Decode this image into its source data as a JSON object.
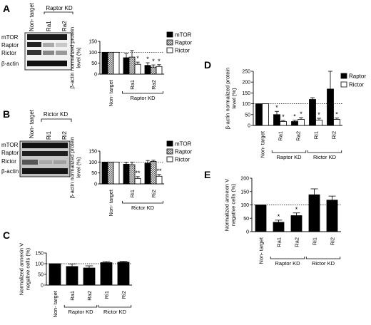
{
  "panels": {
    "A": {
      "letter": "A",
      "group_label": "Raptor KD",
      "lane_labels": [
        "Non- target",
        "Ra1",
        "Ra2"
      ],
      "blot_rows": [
        "mTOR",
        "Raptor",
        "Rictor",
        "β-actin"
      ]
    },
    "B": {
      "letter": "B",
      "group_label": "Rictor KD",
      "lane_labels": [
        "Non- target",
        "Ri1",
        "Ri2"
      ],
      "blot_rows": [
        "mTOR",
        "Raptor",
        "Rictor",
        "β-actin"
      ]
    },
    "C": {
      "letter": "C"
    },
    "D": {
      "letter": "D"
    },
    "E": {
      "letter": "E"
    }
  },
  "chart_data": [
    {
      "id": "A",
      "type": "bar",
      "ylabel": "β-actin normalized protein level (%)",
      "ylim": [
        0,
        150
      ],
      "yticks": [
        0,
        50,
        100,
        150
      ],
      "reference_line": 100,
      "categories": [
        "Non- target",
        "Ra1",
        "Ra2"
      ],
      "group_labels": [
        {
          "label": "Raptor KD",
          "categories": [
            "Ra1",
            "Ra2"
          ]
        }
      ],
      "legend": "right",
      "series": [
        {
          "name": "mTOR",
          "color": "#000000",
          "pattern": "solid",
          "values": [
            100,
            75,
            40
          ],
          "errors": [
            0,
            18,
            12
          ]
        },
        {
          "name": "Raptor",
          "color": "#999999",
          "pattern": "checker",
          "values": [
            100,
            78,
            32
          ],
          "errors": [
            0,
            30,
            10
          ]
        },
        {
          "name": "Rictor",
          "color": "#ffffff",
          "pattern": "open",
          "values": [
            100,
            45,
            35
          ],
          "errors": [
            0,
            10,
            8
          ]
        }
      ],
      "significance": [
        [
          null,
          null,
          "*"
        ],
        [
          null,
          null,
          "*"
        ],
        [
          null,
          "*",
          "*"
        ]
      ]
    },
    {
      "id": "B",
      "type": "bar",
      "ylabel": "β-actin normalized protein level (%)",
      "ylim": [
        0,
        150
      ],
      "yticks": [
        0,
        50,
        100,
        150
      ],
      "reference_line": 100,
      "categories": [
        "Non- target",
        "Ri1",
        "Ri2"
      ],
      "group_labels": [
        {
          "label": "Rictor KD",
          "categories": [
            "Ri1",
            "Ri2"
          ]
        }
      ],
      "legend": "right",
      "series": [
        {
          "name": "mTOR",
          "color": "#000000",
          "pattern": "solid",
          "values": [
            100,
            90,
            95
          ],
          "errors": [
            0,
            8,
            12
          ]
        },
        {
          "name": "Raptor",
          "color": "#999999",
          "pattern": "checker",
          "values": [
            100,
            88,
            103
          ],
          "errors": [
            0,
            12,
            5
          ]
        },
        {
          "name": "Rictor",
          "color": "#ffffff",
          "pattern": "open",
          "values": [
            100,
            25,
            35
          ],
          "errors": [
            0,
            8,
            8
          ]
        }
      ],
      "significance": [
        [
          null,
          null,
          null
        ],
        [
          null,
          null,
          null
        ],
        [
          null,
          "**",
          "**"
        ]
      ]
    },
    {
      "id": "C",
      "type": "bar",
      "ylabel": "Normalized annexin V negative cells (%)",
      "ylim": [
        0,
        150
      ],
      "yticks": [
        0,
        50,
        100,
        150
      ],
      "reference_line": 100,
      "categories": [
        "Non- target",
        "Ra1",
        "Ra2",
        "Ri1",
        "Ri2"
      ],
      "group_labels": [
        {
          "label": "Raptor KD",
          "categories": [
            "Ra1",
            "Ra2"
          ]
        },
        {
          "label": "Rictor KD",
          "categories": [
            "Ri1",
            "Ri2"
          ]
        }
      ],
      "series": [
        {
          "name": "",
          "color": "#000000",
          "pattern": "solid",
          "values": [
            100,
            87,
            80,
            105,
            107
          ],
          "errors": [
            0,
            12,
            10,
            5,
            4
          ]
        }
      ],
      "significance": [
        [
          null,
          null,
          null,
          null,
          null
        ]
      ]
    },
    {
      "id": "D",
      "type": "bar",
      "ylabel": "β-actin normalized protein level (%)",
      "ylim": [
        0,
        250
      ],
      "yticks": [
        0,
        50,
        100,
        150,
        200,
        250
      ],
      "reference_line": 100,
      "categories": [
        "Non- target",
        "Ra1",
        "Ra2",
        "Ri1",
        "Ri2"
      ],
      "group_labels": [
        {
          "label": "Raptor KD",
          "categories": [
            "Ra1",
            "Ra2"
          ]
        },
        {
          "label": "Rictor KD",
          "categories": [
            "Ri1",
            "Ri2"
          ]
        }
      ],
      "legend": "top-right",
      "series": [
        {
          "name": "Raptor",
          "color": "#000000",
          "pattern": "solid",
          "values": [
            100,
            50,
            18,
            120,
            168
          ],
          "errors": [
            0,
            15,
            6,
            8,
            82
          ]
        },
        {
          "name": "Rictor",
          "color": "#ffffff",
          "pattern": "open",
          "values": [
            100,
            18,
            28,
            25,
            28
          ],
          "errors": [
            0,
            5,
            8,
            8,
            6
          ]
        }
      ],
      "significance": [
        [
          null,
          "*",
          "*",
          null,
          null
        ],
        [
          null,
          "*",
          "*",
          "*",
          "*"
        ]
      ]
    },
    {
      "id": "E",
      "type": "bar",
      "ylabel": "Normalized annexin V negative cells (%)",
      "ylim": [
        0,
        200
      ],
      "yticks": [
        0,
        50,
        100,
        150,
        200
      ],
      "reference_line": 100,
      "categories": [
        "Non- target",
        "Ra1",
        "Ra2",
        "Ri1",
        "Ri2"
      ],
      "group_labels": [
        {
          "label": "Raptor KD",
          "categories": [
            "Ra1",
            "Ra2"
          ]
        },
        {
          "label": "Rictor KD",
          "categories": [
            "Ri1",
            "Ri2"
          ]
        }
      ],
      "series": [
        {
          "name": "",
          "color": "#000000",
          "pattern": "solid",
          "values": [
            100,
            35,
            60,
            138,
            118
          ],
          "errors": [
            0,
            8,
            10,
            22,
            15
          ]
        }
      ],
      "significance": [
        [
          null,
          "*",
          "*",
          null,
          null
        ]
      ]
    }
  ]
}
